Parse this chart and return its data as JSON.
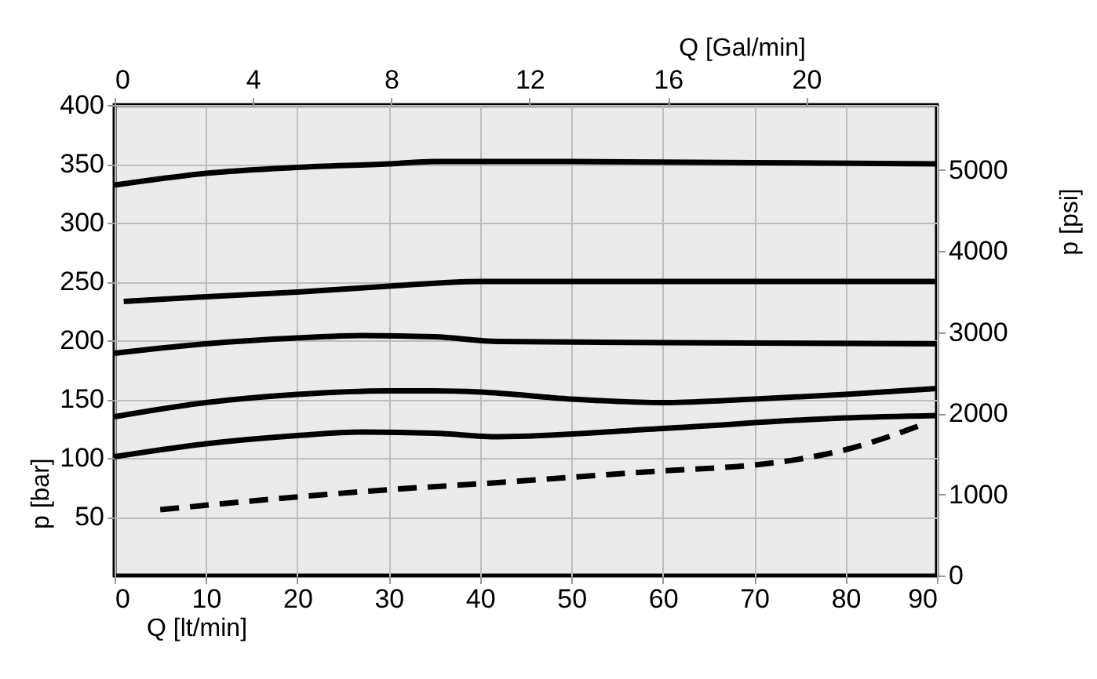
{
  "chart_data": {
    "type": "line",
    "xlabel": "Q [lt/min]",
    "x2label": "Q [Gal/min]",
    "ylabel": "p [bar]",
    "y2label": "p [psi]",
    "xlim": [
      0,
      90
    ],
    "xticks": [
      0,
      10,
      20,
      30,
      40,
      50,
      60,
      70,
      80,
      90
    ],
    "x2lim": [
      0,
      23.78
    ],
    "x2ticks": [
      0,
      4,
      8,
      12,
      16,
      20
    ],
    "ylim": [
      0,
      400
    ],
    "yticks": [
      50,
      100,
      150,
      200,
      250,
      300,
      350,
      400
    ],
    "y2lim": [
      0,
      5800
    ],
    "y2ticks": [
      0,
      1000,
      2000,
      3000,
      4000,
      5000
    ],
    "grid": true,
    "legend": false,
    "marker": "none",
    "series": [
      {
        "color": "#000000",
        "line_style": "solid",
        "x": [
          0,
          10,
          20,
          30,
          35,
          50,
          70,
          90
        ],
        "values": [
          332,
          342,
          347,
          350,
          352,
          352,
          351,
          350
        ]
      },
      {
        "color": "#000000",
        "line_style": "solid",
        "x": [
          1,
          10,
          20,
          30,
          40,
          90
        ],
        "values": [
          233,
          237,
          241,
          246,
          250,
          250
        ]
      },
      {
        "color": "#000000",
        "line_style": "solid",
        "x": [
          0,
          10,
          20,
          27,
          35,
          42,
          60,
          90
        ],
        "values": [
          189,
          197,
          202,
          204,
          203,
          199,
          198,
          197
        ]
      },
      {
        "color": "#000000",
        "line_style": "solid",
        "x": [
          0,
          10,
          20,
          30,
          35,
          40,
          50,
          60,
          70,
          80,
          90
        ],
        "values": [
          135,
          147,
          154,
          157,
          157,
          156,
          150,
          147,
          150,
          154,
          159
        ]
      },
      {
        "color": "#000000",
        "line_style": "solid",
        "x": [
          0,
          10,
          20,
          27,
          35,
          42,
          60,
          80,
          90
        ],
        "values": [
          101,
          112,
          119,
          122,
          121,
          118,
          125,
          134,
          136
        ]
      },
      {
        "color": "#000000",
        "line_style": "dashed",
        "x": [
          5,
          30,
          40,
          60,
          70,
          75,
          80,
          89
        ],
        "values": [
          56,
          73,
          78,
          89,
          94,
          99,
          107,
          130
        ]
      }
    ]
  }
}
